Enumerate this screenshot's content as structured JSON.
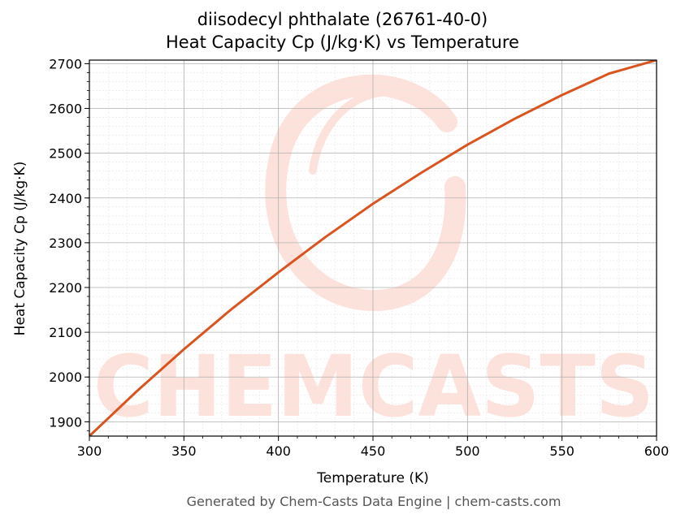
{
  "chart_data": {
    "type": "line",
    "title": "diisodecyl phthalate (26761-40-0)",
    "subtitle": "Heat Capacity Cp (J/kg·K) vs Temperature",
    "xlabel": "Temperature (K)",
    "ylabel": "Heat Capacity Cp (J/kg·K)",
    "xlim": [
      300,
      600
    ],
    "ylim": [
      1868,
      2708
    ],
    "x_ticks": [
      300,
      350,
      400,
      450,
      500,
      550,
      600
    ],
    "y_ticks": [
      1900,
      2000,
      2100,
      2200,
      2300,
      2400,
      2500,
      2600,
      2700
    ],
    "grid": true,
    "line_color": "#d9541e",
    "series": [
      {
        "name": "",
        "x": [
          300,
          325,
          350,
          375,
          400,
          425,
          450,
          475,
          500,
          525,
          550,
          575,
          600
        ],
        "y": [
          1868,
          1968,
          2062,
          2151,
          2234,
          2313,
          2387,
          2455,
          2519,
          2577,
          2630,
          2678,
          2708
        ]
      }
    ]
  },
  "watermark": {
    "text": "CHEMCASTS",
    "color": "#fde2dc"
  },
  "footer": "Generated by Chem-Casts Data Engine | chem-casts.com"
}
